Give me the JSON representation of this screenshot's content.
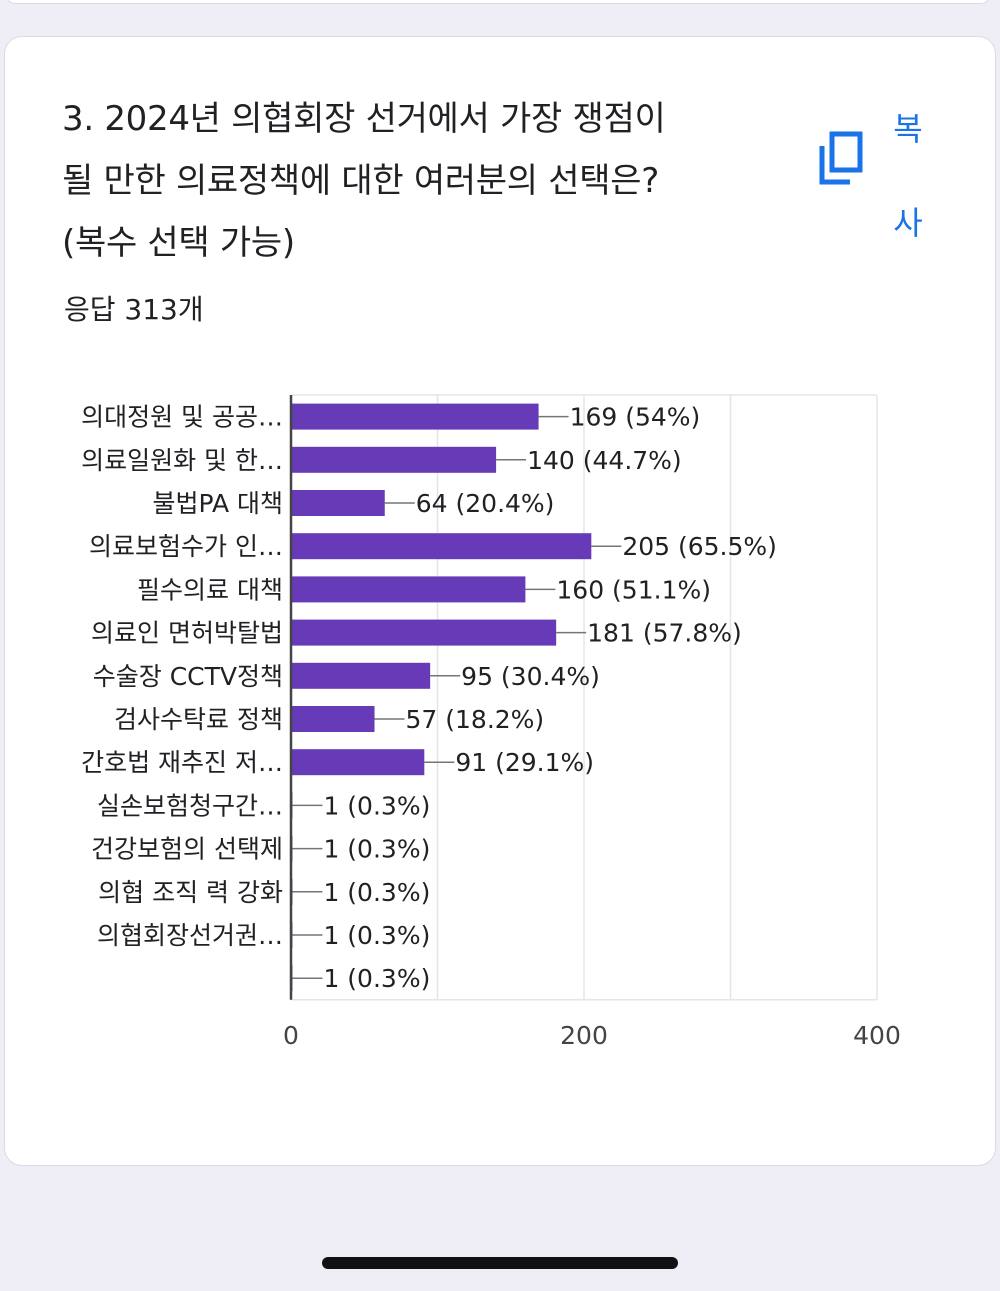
{
  "question": {
    "title": "3. 2024년 의협회장 선거에서 가장 쟁점이\n될 만한 의료정책에 대한 여러분의 선택은?\n(복수 선택 가능)",
    "response_count": "응답 313개",
    "copy_label": "복\n사",
    "copy_icon": "copy-icon"
  },
  "colors": {
    "bar": "#673ab7",
    "axis": "#444444",
    "grid": "#e5e5e5",
    "accent": "#1a73e8",
    "text": "#202124",
    "background": "#efedf6"
  },
  "chart_data": {
    "type": "bar",
    "orientation": "horizontal",
    "categories": [
      "의대정원 및 공공…",
      "의료일원화 및 한…",
      "불법PA 대책",
      "의료보험수가 인…",
      "필수의료 대책",
      "의료인 면허박탈법",
      "수술장 CCTV정책",
      "검사수탁료 정책",
      "간호법 재추진 저…",
      "실손보험청구간…",
      "건강보험의 선택제",
      "의협 조직 력 강화",
      "의협회장선거권…",
      ""
    ],
    "values": [
      169,
      140,
      64,
      205,
      160,
      181,
      95,
      57,
      91,
      1,
      1,
      1,
      1,
      1
    ],
    "value_labels": [
      "169 (54%)",
      "140 (44.7%)",
      "64 (20.4%)",
      "205 (65.5%)",
      "160 (51.1%)",
      "181 (57.8%)",
      "95 (30.4%)",
      "57 (18.2%)",
      "91 (29.1%)",
      "1 (0.3%)",
      "1 (0.3%)",
      "1 (0.3%)",
      "1 (0.3%)",
      "1 (0.3%)"
    ],
    "xlim": [
      0,
      400
    ],
    "xticks": [
      0,
      200,
      400
    ],
    "grid": true,
    "title": "",
    "xlabel": "",
    "ylabel": ""
  }
}
